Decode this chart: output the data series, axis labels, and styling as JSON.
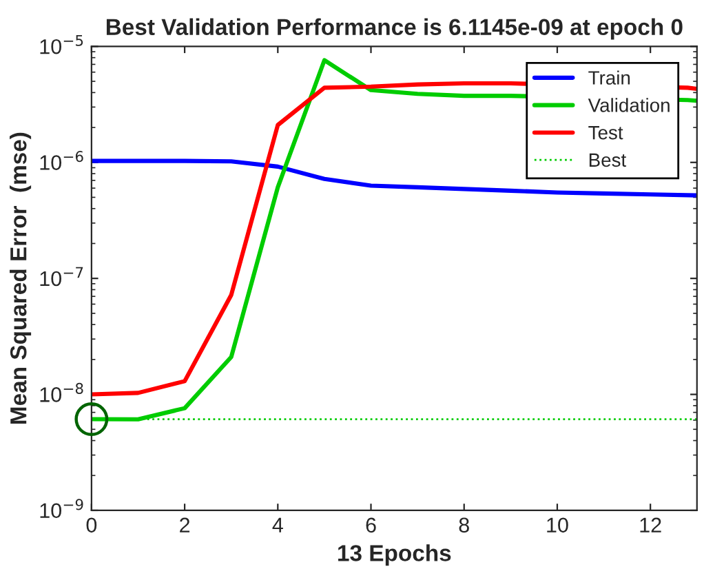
{
  "chart_data": {
    "type": "line",
    "title": "Best Validation Performance is 6.1145e-09 at epoch 0",
    "xlabel": "13 Epochs",
    "ylabel": "Mean Squared Error  (mse)",
    "x": [
      0,
      1,
      2,
      3,
      4,
      5,
      6,
      7,
      8,
      9,
      10,
      11,
      12,
      13
    ],
    "series": [
      {
        "name": "Train",
        "color": "#0000ff",
        "values": [
          1.03e-06,
          1.03e-06,
          1.03e-06,
          1.02e-06,
          9.2e-07,
          7.2e-07,
          6.3e-07,
          6.1e-07,
          5.9e-07,
          5.7e-07,
          5.5e-07,
          5.4e-07,
          5.3e-07,
          5.2e-07
        ]
      },
      {
        "name": "Validation",
        "color": "#00cc00",
        "x": [
          0,
          1,
          2,
          3,
          4,
          5,
          6,
          7,
          8,
          9,
          12.8,
          13
        ],
        "values": [
          6.1145e-09,
          6.1e-09,
          7.6e-09,
          2.1e-08,
          6.1e-07,
          7.6e-06,
          4.2e-06,
          3.9e-06,
          3.75e-06,
          3.75e-06,
          3.45e-06,
          3.4e-06
        ]
      },
      {
        "name": "Test",
        "color": "#ff0000",
        "x": [
          0,
          1,
          2,
          3,
          4,
          5,
          6,
          7,
          8,
          9,
          12.8,
          13
        ],
        "values": [
          1e-08,
          1.03e-08,
          1.3e-08,
          7.2e-08,
          2.1e-06,
          4.4e-06,
          4.5e-06,
          4.7e-06,
          4.8e-06,
          4.8e-06,
          4.4e-06,
          4.3e-06
        ]
      },
      {
        "type": "scatter",
        "marker": "circle",
        "color": "#006400",
        "x": [
          0
        ],
        "values": [
          6.1145e-09
        ]
      }
    ],
    "ref_lines": [
      {
        "axis": "y",
        "value": 6.1145e-09,
        "label": "Best",
        "color": "#00cc00",
        "line_style": "dotted"
      }
    ],
    "log": "y",
    "xlim": [
      0,
      13
    ],
    "xticks": [
      0,
      2,
      4,
      6,
      8,
      10,
      12
    ],
    "ylim": [
      1e-09,
      1e-05
    ],
    "yticks": [
      {
        "value": 1e-09,
        "label": "10$^{−9}$"
      },
      {
        "value": 1e-08,
        "label": "10$^{−8}$"
      },
      {
        "value": 1e-07,
        "label": "10$^{−7}$"
      },
      {
        "value": 1e-06,
        "label": "10$^{−6}$"
      },
      {
        "value": 1e-05,
        "label": "10$^{−5}$"
      }
    ],
    "grid": false,
    "legend": "top right"
  }
}
